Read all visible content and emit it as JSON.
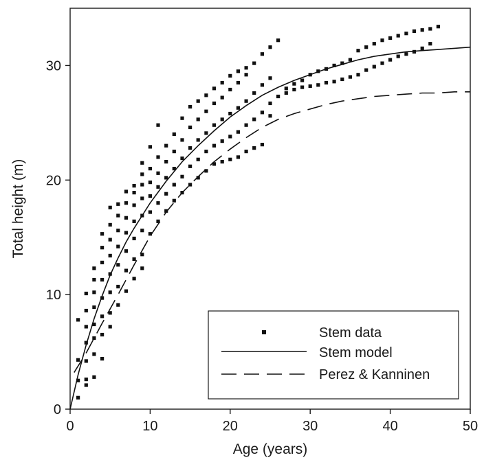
{
  "chart_data": {
    "type": "scatter",
    "title": "",
    "xlabel": "Age (years)",
    "ylabel": "Total height (m)",
    "xlim": [
      0,
      50
    ],
    "ylim": [
      0,
      35
    ],
    "x_ticks": [
      0,
      10,
      20,
      30,
      40,
      50
    ],
    "y_ticks": [
      0,
      10,
      20,
      30
    ],
    "grid": false,
    "legend_position": "bottom-right",
    "series": [
      {
        "name": "Stem data",
        "kind": "points",
        "color": "#111111",
        "points": [
          [
            1,
            1.0
          ],
          [
            1,
            2.5
          ],
          [
            1,
            4.3
          ],
          [
            1,
            7.8
          ],
          [
            2,
            2.1
          ],
          [
            2,
            2.6
          ],
          [
            2,
            4.2
          ],
          [
            2,
            5.8
          ],
          [
            2,
            7.2
          ],
          [
            2,
            8.6
          ],
          [
            2,
            10.1
          ],
          [
            3,
            2.8
          ],
          [
            3,
            4.8
          ],
          [
            3,
            6.2
          ],
          [
            3,
            7.4
          ],
          [
            3,
            8.9
          ],
          [
            3,
            10.2
          ],
          [
            3,
            11.3
          ],
          [
            3,
            12.3
          ],
          [
            4,
            4.4
          ],
          [
            4,
            6.5
          ],
          [
            4,
            8.1
          ],
          [
            4,
            9.7
          ],
          [
            4,
            11.3
          ],
          [
            4,
            12.8
          ],
          [
            4,
            14.1
          ],
          [
            4,
            15.3
          ],
          [
            5,
            7.2
          ],
          [
            5,
            8.4
          ],
          [
            5,
            10.2
          ],
          [
            5,
            11.8
          ],
          [
            5,
            13.4
          ],
          [
            5,
            14.8
          ],
          [
            5,
            16.1
          ],
          [
            5,
            17.6
          ],
          [
            6,
            9.1
          ],
          [
            6,
            10.7
          ],
          [
            6,
            12.6
          ],
          [
            6,
            14.2
          ],
          [
            6,
            15.6
          ],
          [
            6,
            16.9
          ],
          [
            6,
            17.9
          ],
          [
            7,
            10.3
          ],
          [
            7,
            12.1
          ],
          [
            7,
            13.8
          ],
          [
            7,
            15.4
          ],
          [
            7,
            16.7
          ],
          [
            7,
            18.0
          ],
          [
            7,
            19.0
          ],
          [
            8,
            11.4
          ],
          [
            8,
            13.1
          ],
          [
            8,
            14.9
          ],
          [
            8,
            16.4
          ],
          [
            8,
            17.8
          ],
          [
            8,
            18.9
          ],
          [
            8,
            19.5
          ],
          [
            9,
            12.3
          ],
          [
            9,
            13.5
          ],
          [
            9,
            15.6
          ],
          [
            9,
            16.9
          ],
          [
            9,
            18.4
          ],
          [
            9,
            19.6
          ],
          [
            9,
            20.5
          ],
          [
            9,
            21.5
          ],
          [
            10,
            15.3
          ],
          [
            10,
            17.2
          ],
          [
            10,
            18.6
          ],
          [
            10,
            19.8
          ],
          [
            10,
            21.0
          ],
          [
            10,
            22.9
          ],
          [
            11,
            16.4
          ],
          [
            11,
            18.0
          ],
          [
            11,
            19.4
          ],
          [
            11,
            20.6
          ],
          [
            11,
            22.0
          ],
          [
            11,
            24.8
          ],
          [
            12,
            17.3
          ],
          [
            12,
            18.8
          ],
          [
            12,
            20.2
          ],
          [
            12,
            21.6
          ],
          [
            12,
            23.0
          ],
          [
            13,
            18.2
          ],
          [
            13,
            19.6
          ],
          [
            13,
            21.0
          ],
          [
            13,
            22.5
          ],
          [
            13,
            24.0
          ],
          [
            14,
            18.9
          ],
          [
            14,
            20.3
          ],
          [
            14,
            21.9
          ],
          [
            14,
            23.5
          ],
          [
            14,
            25.4
          ],
          [
            15,
            19.6
          ],
          [
            15,
            21.2
          ],
          [
            15,
            22.8
          ],
          [
            15,
            24.6
          ],
          [
            15,
            26.4
          ],
          [
            16,
            20.2
          ],
          [
            16,
            21.8
          ],
          [
            16,
            23.5
          ],
          [
            16,
            25.3
          ],
          [
            16,
            26.9
          ],
          [
            17,
            20.8
          ],
          [
            17,
            22.5
          ],
          [
            17,
            24.1
          ],
          [
            17,
            26.0
          ],
          [
            17,
            27.4
          ],
          [
            18,
            21.4
          ],
          [
            18,
            23.0
          ],
          [
            18,
            24.8
          ],
          [
            18,
            26.7
          ],
          [
            18,
            28.0
          ],
          [
            19,
            21.6
          ],
          [
            19,
            23.4
          ],
          [
            19,
            25.3
          ],
          [
            19,
            27.2
          ],
          [
            19,
            28.5
          ],
          [
            20,
            21.8
          ],
          [
            20,
            23.8
          ],
          [
            20,
            25.8
          ],
          [
            20,
            27.9
          ],
          [
            20,
            29.1
          ],
          [
            21,
            22.0
          ],
          [
            21,
            24.2
          ],
          [
            21,
            26.3
          ],
          [
            21,
            28.5
          ],
          [
            21,
            29.5
          ],
          [
            22,
            22.5
          ],
          [
            22,
            24.8
          ],
          [
            22,
            26.9
          ],
          [
            22,
            29.2
          ],
          [
            22,
            29.8
          ],
          [
            23,
            22.8
          ],
          [
            23,
            25.3
          ],
          [
            23,
            27.6
          ],
          [
            23,
            30.2
          ],
          [
            24,
            23.1
          ],
          [
            24,
            25.9
          ],
          [
            24,
            28.3
          ],
          [
            24,
            31.0
          ],
          [
            25,
            25.6
          ],
          [
            25,
            26.7
          ],
          [
            25,
            28.9
          ],
          [
            25,
            31.6
          ],
          [
            26,
            27.3
          ],
          [
            26,
            32.2
          ],
          [
            27,
            27.6
          ],
          [
            27,
            28.0
          ],
          [
            28,
            27.9
          ],
          [
            28,
            28.4
          ],
          [
            29,
            28.1
          ],
          [
            29,
            28.7
          ],
          [
            30,
            28.2
          ],
          [
            30,
            29.2
          ],
          [
            31,
            28.3
          ],
          [
            31,
            29.5
          ],
          [
            32,
            28.5
          ],
          [
            32,
            29.7
          ],
          [
            33,
            28.6
          ],
          [
            33,
            30.0
          ],
          [
            34,
            28.8
          ],
          [
            34,
            30.2
          ],
          [
            35,
            29.0
          ],
          [
            35,
            30.5
          ],
          [
            36,
            29.2
          ],
          [
            36,
            31.3
          ],
          [
            37,
            29.6
          ],
          [
            37,
            31.6
          ],
          [
            38,
            29.9
          ],
          [
            38,
            31.9
          ],
          [
            39,
            30.2
          ],
          [
            39,
            32.2
          ],
          [
            40,
            30.5
          ],
          [
            40,
            32.4
          ],
          [
            41,
            30.8
          ],
          [
            41,
            32.6
          ],
          [
            42,
            31.0
          ],
          [
            42,
            32.8
          ],
          [
            43,
            31.2
          ],
          [
            43,
            33.0
          ],
          [
            44,
            31.5
          ],
          [
            44,
            33.1
          ],
          [
            45,
            31.9
          ],
          [
            45,
            33.2
          ],
          [
            46,
            33.4
          ]
        ]
      },
      {
        "name": "Stem model",
        "kind": "line",
        "line_style": "solid",
        "color": "#111111",
        "points": [
          [
            0,
            0.0
          ],
          [
            1,
            3.0
          ],
          [
            2,
            5.6
          ],
          [
            3,
            7.9
          ],
          [
            4,
            9.9
          ],
          [
            5,
            11.7
          ],
          [
            6,
            13.2
          ],
          [
            7,
            14.6
          ],
          [
            8,
            15.8
          ],
          [
            9,
            16.9
          ],
          [
            10,
            18.0
          ],
          [
            12,
            19.9
          ],
          [
            14,
            21.6
          ],
          [
            16,
            23.0
          ],
          [
            18,
            24.3
          ],
          [
            20,
            25.5
          ],
          [
            22,
            26.5
          ],
          [
            24,
            27.4
          ],
          [
            26,
            28.1
          ],
          [
            28,
            28.7
          ],
          [
            30,
            29.2
          ],
          [
            32,
            29.7
          ],
          [
            34,
            30.1
          ],
          [
            36,
            30.5
          ],
          [
            38,
            30.8
          ],
          [
            40,
            31.0
          ],
          [
            42,
            31.2
          ],
          [
            44,
            31.3
          ],
          [
            46,
            31.4
          ],
          [
            48,
            31.5
          ],
          [
            50,
            31.6
          ]
        ]
      },
      {
        "name": "Perez & Kanninen",
        "kind": "line",
        "line_style": "dashed",
        "color": "#111111",
        "points": [
          [
            0.5,
            3.2
          ],
          [
            2,
            4.9
          ],
          [
            4,
            7.5
          ],
          [
            6,
            10.0
          ],
          [
            8,
            12.6
          ],
          [
            10,
            15.1
          ],
          [
            12,
            17.2
          ],
          [
            14,
            18.9
          ],
          [
            16,
            20.3
          ],
          [
            18,
            21.6
          ],
          [
            20,
            22.7
          ],
          [
            22,
            23.7
          ],
          [
            24,
            24.6
          ],
          [
            26,
            25.3
          ],
          [
            28,
            25.8
          ],
          [
            30,
            26.2
          ],
          [
            32,
            26.6
          ],
          [
            34,
            26.9
          ],
          [
            36,
            27.1
          ],
          [
            38,
            27.3
          ],
          [
            40,
            27.4
          ],
          [
            42,
            27.5
          ],
          [
            44,
            27.6
          ],
          [
            46,
            27.6
          ],
          [
            48,
            27.7
          ],
          [
            50,
            27.7
          ]
        ]
      }
    ]
  }
}
